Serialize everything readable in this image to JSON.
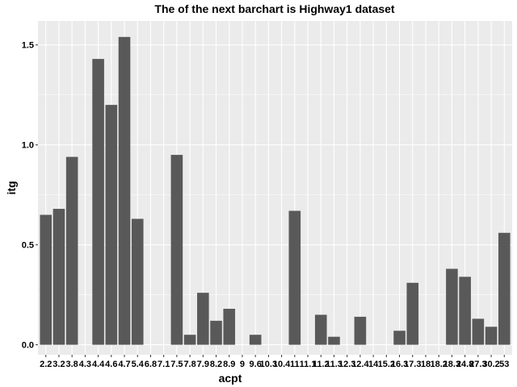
{
  "chart_data": {
    "type": "bar",
    "title": "The of the next barchart is Highway1 dataset",
    "xlabel": "acpt",
    "ylabel": "itg",
    "ylim": [
      -0.05,
      1.62
    ],
    "yticks": [
      "0.0",
      "0.5",
      "1.0",
      "1.5"
    ],
    "ytick_values": [
      0.0,
      0.5,
      1.0,
      1.5
    ],
    "categories": [
      "2.2",
      "3.2",
      "3.8",
      "4.3",
      "4.4",
      "4.6",
      "4.7",
      "5.4",
      "6.8",
      "7.1",
      "7.5",
      "7.8",
      "7.9",
      "8.2",
      "8.9",
      "9",
      "9.6",
      "10.3",
      "10.4",
      "11",
      "11.1",
      "11.2",
      "11.3",
      "12.3",
      "12.4",
      "14",
      "15.2",
      "16.3",
      "17.3",
      "18",
      "18.2",
      "18.3",
      "24.8",
      "27.3",
      "30.2",
      "53"
    ],
    "values": [
      0.65,
      0.68,
      0.94,
      0.0,
      1.43,
      1.2,
      1.54,
      0.63,
      0.0,
      0.0,
      0.95,
      0.05,
      0.26,
      0.12,
      0.18,
      0.0,
      0.05,
      0.0,
      0.0,
      0.67,
      0.0,
      0.15,
      0.04,
      0.0,
      0.14,
      0.0,
      0.0,
      0.07,
      0.31,
      0.0,
      0.0,
      0.38,
      0.34,
      0.13,
      0.09,
      0.56
    ],
    "grid": true,
    "legend": "none",
    "colors": {
      "panel": "#ebebeb",
      "grid_major": "#ffffff",
      "bar": "#595959",
      "tick": "#333333"
    }
  }
}
